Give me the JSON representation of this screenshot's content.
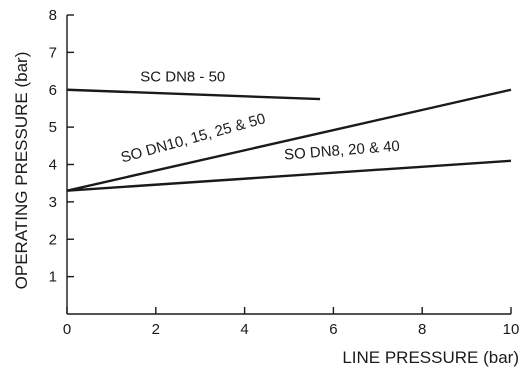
{
  "chart_data": {
    "type": "line",
    "title": "",
    "xlabel": "LINE PRESSURE (bar)",
    "ylabel": "OPERATING PRESSURE (bar)",
    "xlim": [
      0,
      10
    ],
    "ylim": [
      0,
      8
    ],
    "x_ticks": [
      0,
      2,
      4,
      6,
      8,
      10
    ],
    "y_ticks": [
      1,
      2,
      3,
      4,
      5,
      6,
      7,
      8
    ],
    "grid": false,
    "legend": "none",
    "series": [
      {
        "name": "SC DN8 - 50",
        "x": [
          0,
          5.7
        ],
        "y": [
          6.0,
          5.75
        ]
      },
      {
        "name": "SO DN10, 15, 25 & 50",
        "x": [
          0,
          10
        ],
        "y": [
          3.3,
          6.0
        ]
      },
      {
        "name": "SO DN8, 20 & 40",
        "x": [
          0,
          10
        ],
        "y": [
          3.3,
          4.1
        ]
      }
    ]
  }
}
